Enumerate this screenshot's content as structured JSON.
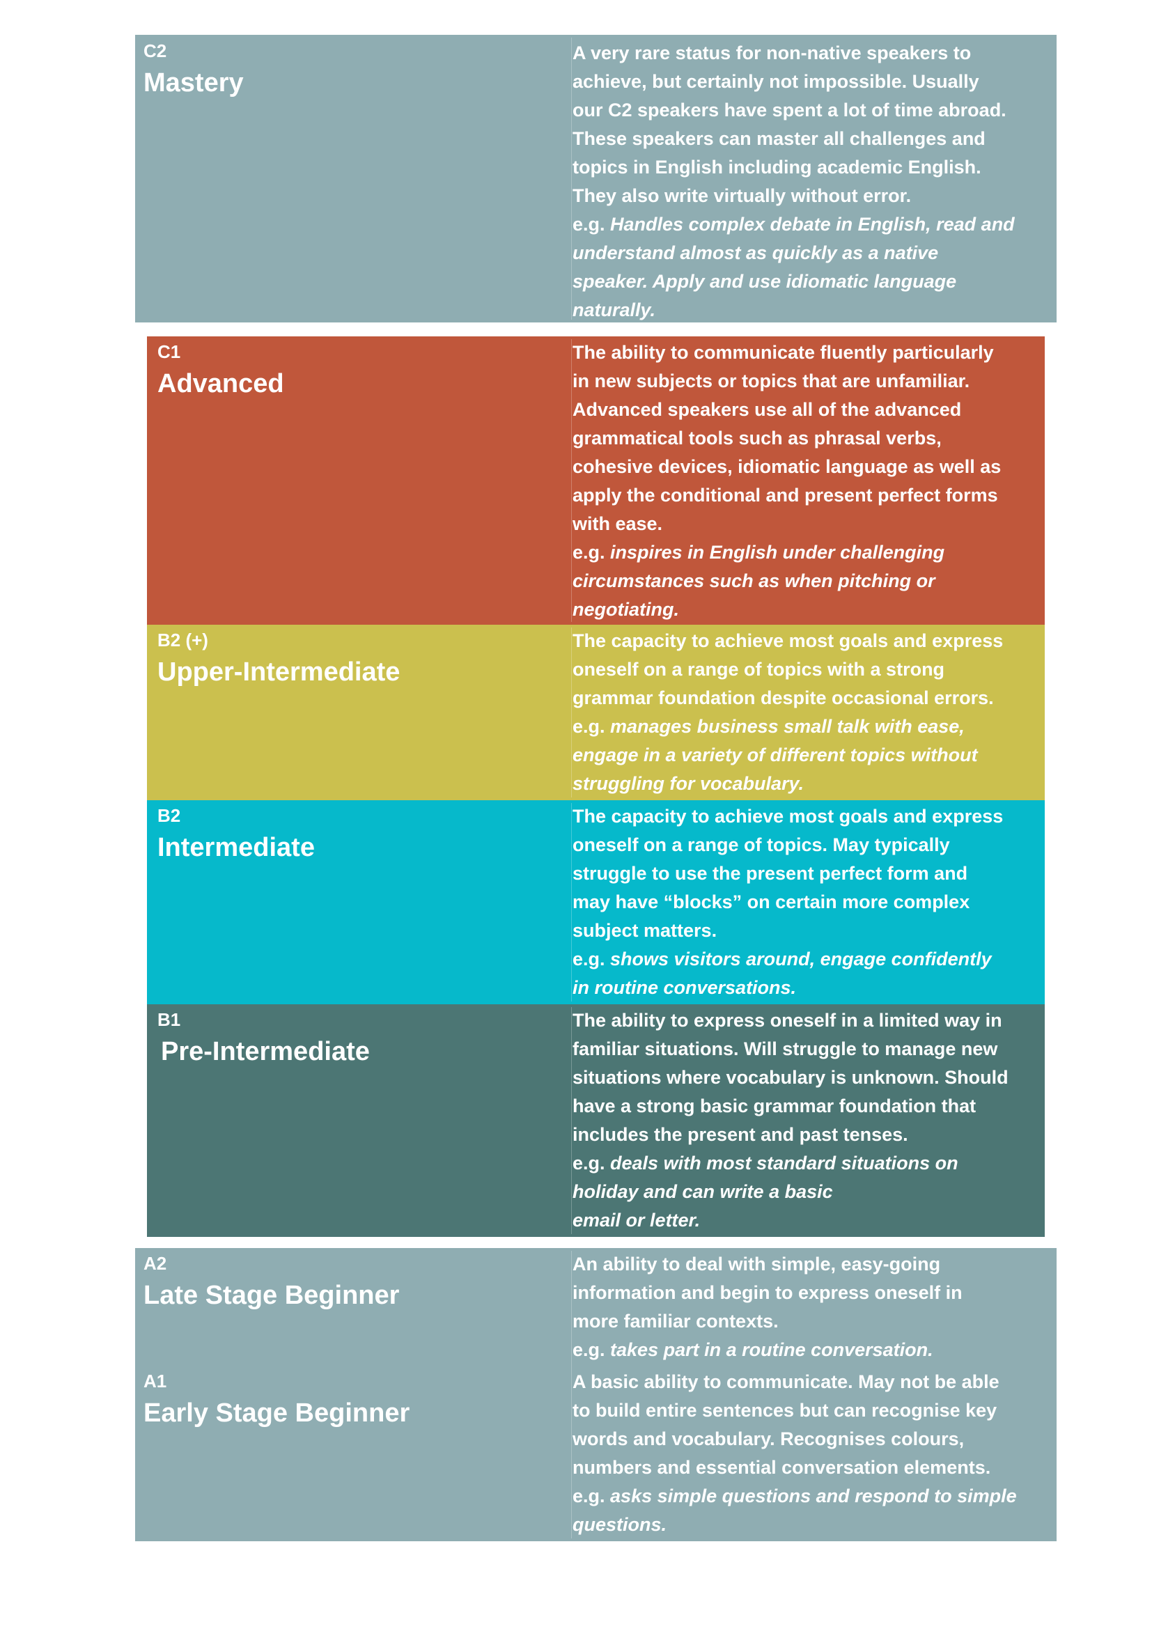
{
  "levels": [
    {
      "code": "C2",
      "name": "Mastery",
      "color": "#8fadb2",
      "text_lines": [
        "A very rare status for non-native speakers to",
        "achieve, but certainly not impossible. Usually",
        "our C2 speakers have spent a lot of time abroad.",
        "These speakers can master all challenges and",
        "topics in English including academic English.",
        "They also write virtually without error."
      ],
      "example_prefix": "e.g.",
      "example_lines": [
        "Handles complex debate in English, read and",
        "understand almost as quickly as a native",
        "speaker. Apply and use idiomatic language",
        "naturally."
      ]
    },
    {
      "code": "C1",
      "name": "Advanced",
      "color": "#c0573b",
      "text_lines": [
        "The ability to communicate fluently particularly",
        "in new subjects or topics that are unfamiliar.",
        "Advanced speakers use all of the advanced",
        "grammatical tools such as phrasal verbs,",
        "cohesive devices, idiomatic language as well as",
        "apply the conditional and present perfect forms",
        "with ease."
      ],
      "example_prefix": "e.g.",
      "example_lines": [
        "inspires in English under challenging",
        "circumstances such as when pitching or",
        "negotiating."
      ]
    },
    {
      "code": "B2 (+)",
      "name": "Upper-Intermediate",
      "color": "#cbc04e",
      "text_lines": [
        "The capacity to achieve most goals and express",
        "oneself on a range of topics with a strong",
        "grammar foundation despite occasional errors."
      ],
      "example_prefix": "e.g.",
      "example_lines": [
        "manages business small talk with ease,",
        "engage in a variety of different topics without",
        "struggling for vocabulary."
      ]
    },
    {
      "code": "B2",
      "name": "Intermediate",
      "color": "#06b9cb",
      "text_lines": [
        "The capacity to achieve most goals and express",
        "oneself on a range of topics. May typically",
        "struggle to use the present perfect form and",
        "may have “blocks” on certain more complex",
        "subject matters."
      ],
      "example_prefix": "e.g. ",
      "example_lines": [
        "shows visitors around, engage confidently",
        "in routine conversations."
      ]
    },
    {
      "code": "B1",
      "name": "Pre-Intermediate",
      "color": "#4c7674",
      "text_lines": [
        "The ability to express oneself in a limited way in",
        "familiar situations. Will struggle to manage new",
        "situations where vocabulary is unknown. Should",
        "have a strong basic grammar foundation that",
        "includes the present and past tenses."
      ],
      "example_prefix": "e.g.",
      "example_lines": [
        "deals with most standard situations on",
        "holiday and can write a basic",
        "email or letter."
      ]
    },
    {
      "code": "A2",
      "name": "Late Stage Beginner",
      "color": "#8fadb2",
      "text_lines": [
        "An ability to deal with simple, easy-going",
        "information and begin to express oneself in",
        "more familiar contexts."
      ],
      "example_prefix": "e.g.",
      "example_lines": [
        "takes part in a routine conversation."
      ]
    },
    {
      "code": "A1",
      "name": "Early Stage Beginner",
      "color": "#8fadb2",
      "text_lines": [
        "A basic ability to communicate. May not be able",
        "to build entire sentences but can recognise key",
        "words and vocabulary. Recognises colours,",
        "numbers and essential conversation elements."
      ],
      "example_prefix": "e.g.",
      "example_lines": [
        "asks simple questions and respond to simple",
        "questions."
      ]
    }
  ]
}
